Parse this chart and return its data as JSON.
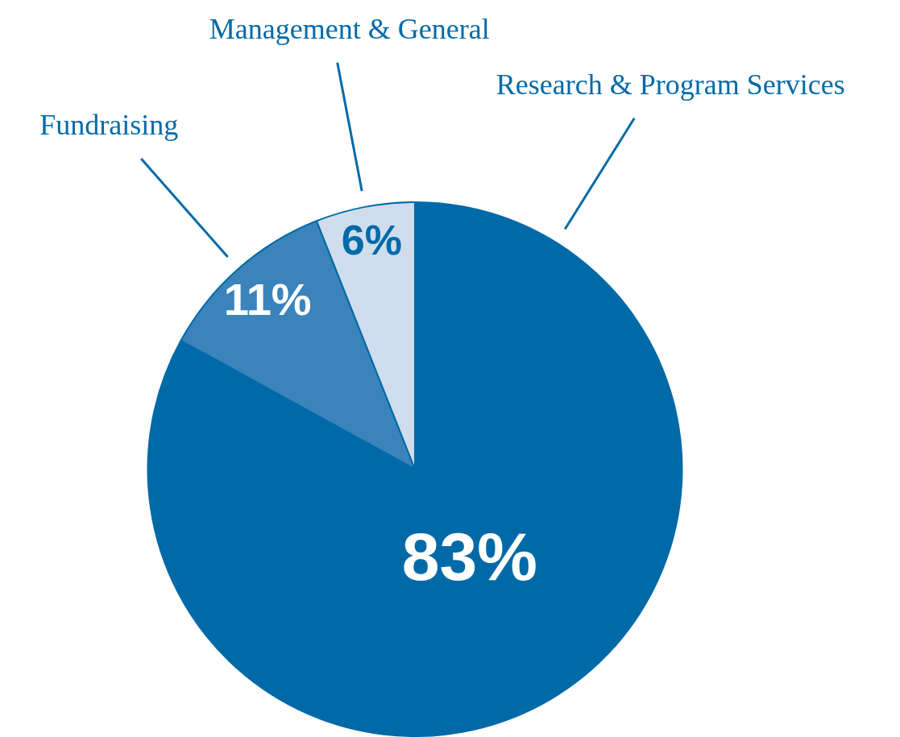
{
  "chart_data": {
    "type": "pie",
    "categories": [
      "Research & Program Services",
      "Fundraising",
      "Management & General"
    ],
    "values": [
      83,
      11,
      6
    ],
    "value_labels": [
      "83%",
      "11%",
      "6%"
    ],
    "colors": [
      "#006aa8",
      "#3a84bb",
      "#d0dded"
    ]
  }
}
